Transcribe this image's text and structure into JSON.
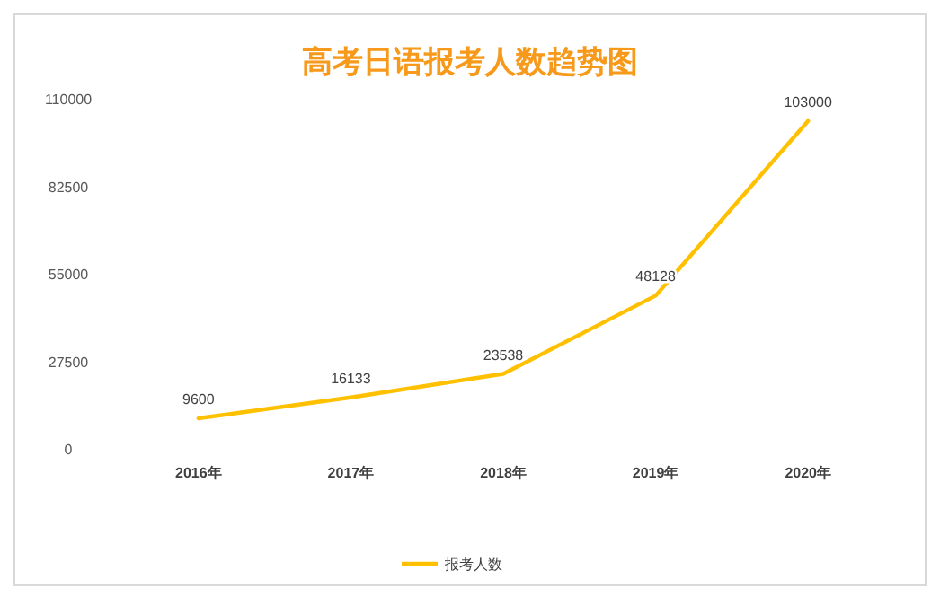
{
  "chart_data": {
    "type": "line",
    "title": "高考日语报考人数趋势图",
    "categories": [
      "2016年",
      "2017年",
      "2018年",
      "2019年",
      "2020年"
    ],
    "series": [
      {
        "name": "报考人数",
        "color": "#ffc000",
        "values": [
          9600,
          16133,
          23538,
          48128,
          103000
        ]
      }
    ],
    "ylim": [
      0,
      110000
    ],
    "yticks": [
      0,
      27500,
      55000,
      82500,
      110000
    ],
    "data_labels": true,
    "legend": "bottom",
    "grid": false
  }
}
